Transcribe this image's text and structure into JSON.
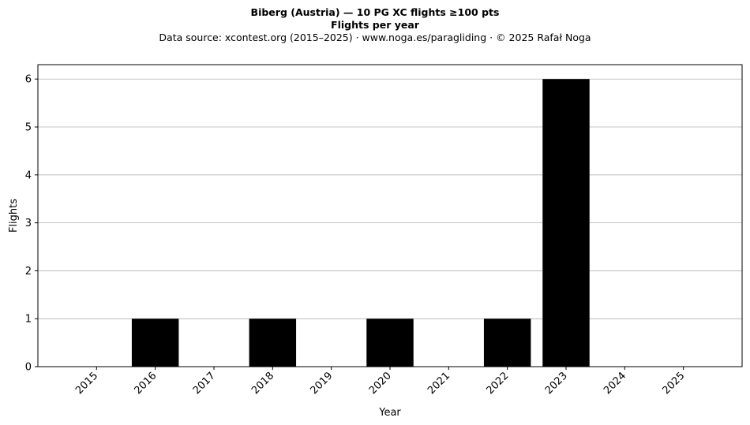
{
  "chart_data": {
    "type": "bar",
    "title": "Biberg (Austria)  —  10 PG XC flights ≥100 pts",
    "subtitle": "Flights per year",
    "source_note": "Data source: xcontest.org (2015–2025)  ·  www.noga.es/paragliding  ·  © 2025 Rafał Noga",
    "xlabel": "Year",
    "ylabel": "Flights",
    "categories": [
      "2015",
      "2016",
      "2017",
      "2018",
      "2019",
      "2020",
      "2021",
      "2022",
      "2023",
      "2024",
      "2025"
    ],
    "values": [
      0,
      1,
      0,
      1,
      0,
      1,
      0,
      1,
      6,
      0,
      0
    ],
    "yticks": [
      0,
      1,
      2,
      3,
      4,
      5,
      6
    ],
    "ylim": [
      0,
      6.3
    ],
    "grid": "horizontal",
    "bar_color": "#000000",
    "grid_color": "#b0b0b0"
  }
}
